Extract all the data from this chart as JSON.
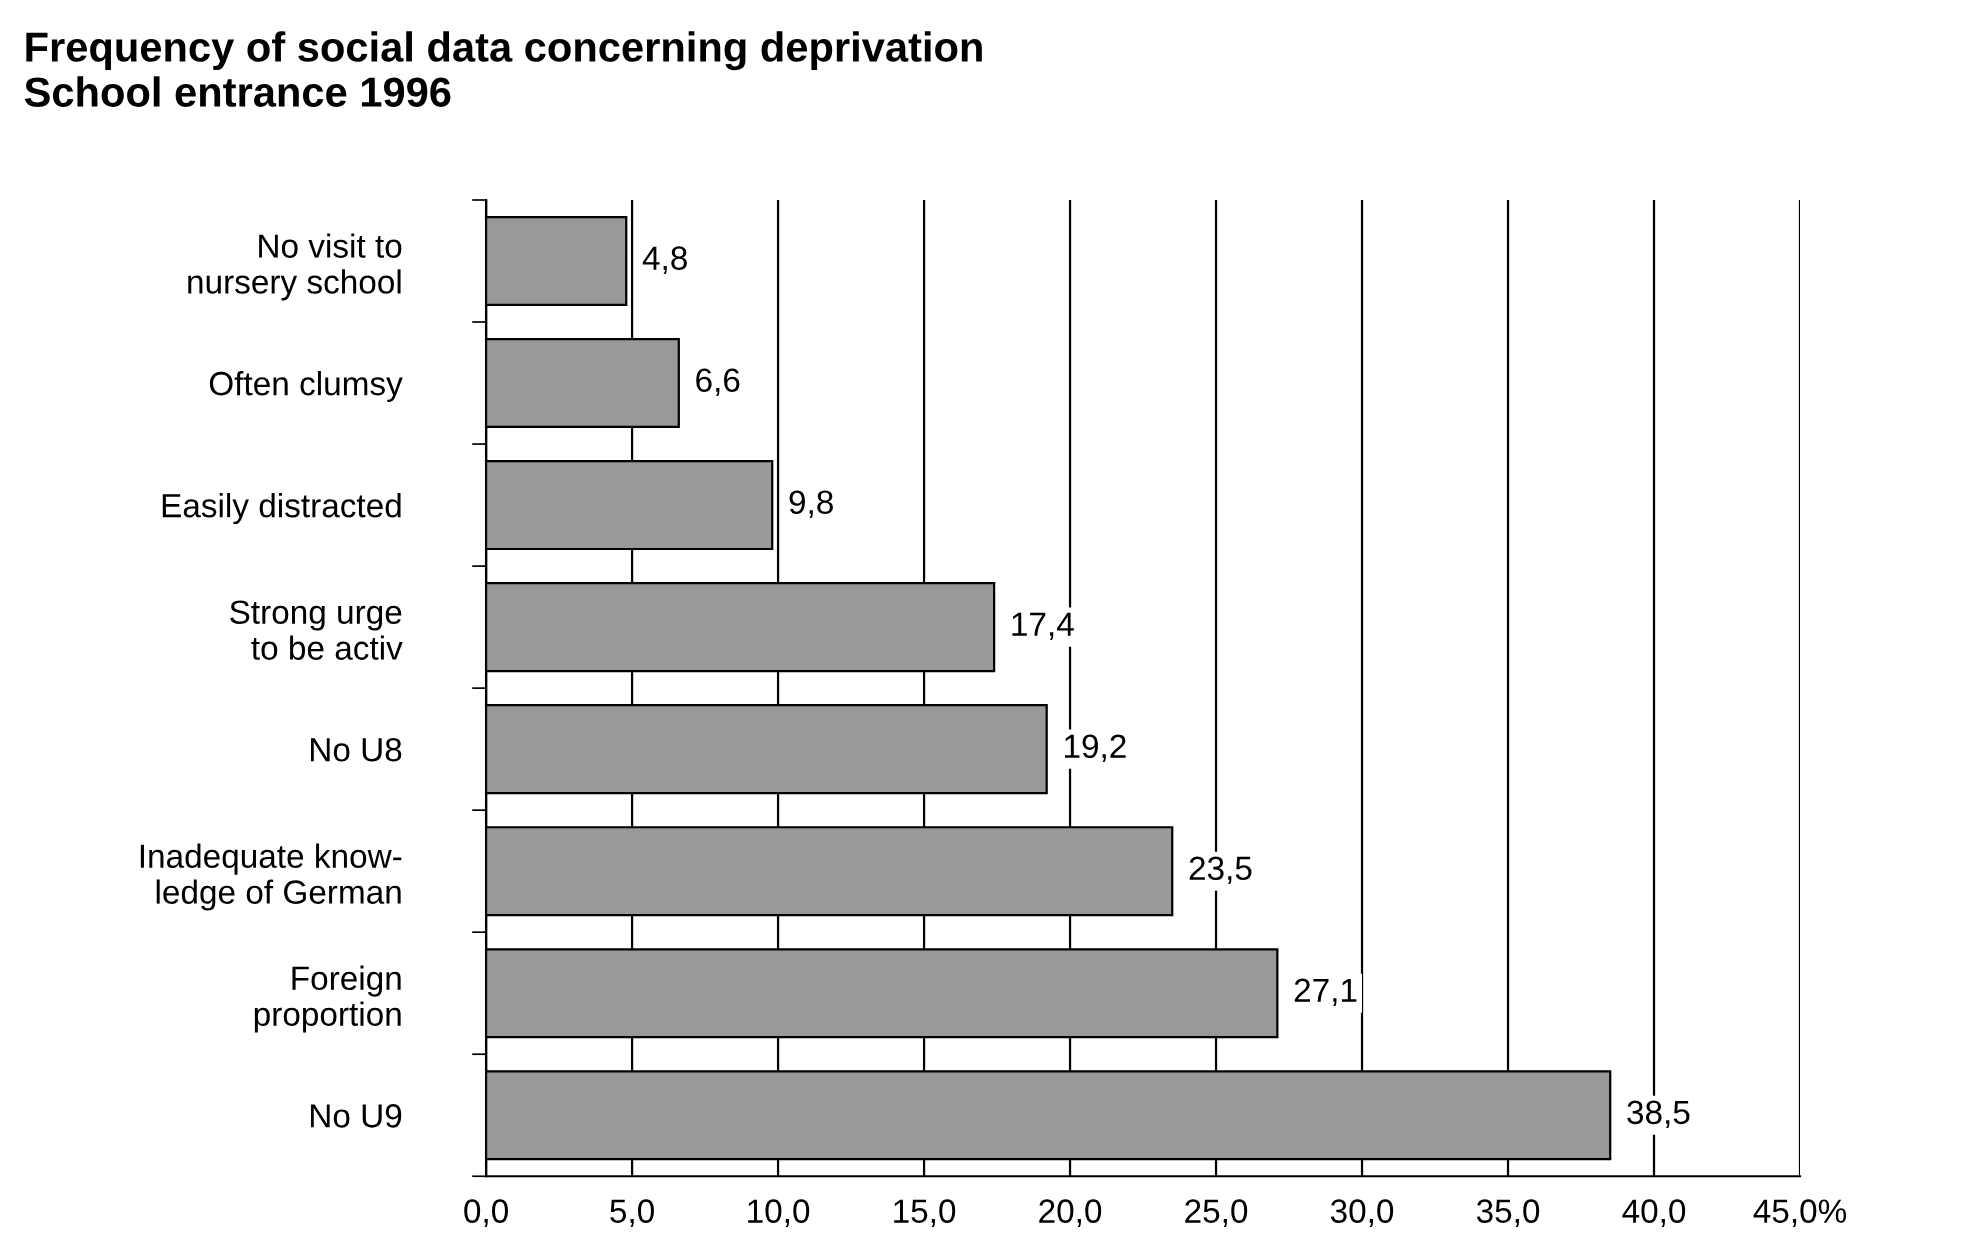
{
  "chart_data": {
    "type": "bar",
    "orientation": "horizontal",
    "title": "Frequency of social data concerning deprivation\nSchool entrance 1996",
    "categories": [
      "No visit to\nnursery school",
      "Often clumsy",
      "Easily distracted",
      "Strong urge\nto be activ",
      "No U8",
      "Inadequate know-\nledge of German",
      "Foreign\nproportion",
      "No U9"
    ],
    "values": [
      4.8,
      6.6,
      9.8,
      17.4,
      19.2,
      23.5,
      27.1,
      38.5
    ],
    "value_labels": [
      "4,8",
      "6,6",
      "9,8",
      "17,4",
      "19,2",
      "23,5",
      "27,1",
      "38,5"
    ],
    "color": "#999999",
    "xlim": [
      0,
      45
    ],
    "xticks": [
      {
        "value": 0,
        "label": "0,0"
      },
      {
        "value": 5,
        "label": "5,0"
      },
      {
        "value": 10,
        "label": "10,0"
      },
      {
        "value": 15,
        "label": "15,0"
      },
      {
        "value": 20,
        "label": "20,0"
      },
      {
        "value": 25,
        "label": "25,0"
      },
      {
        "value": 30,
        "label": "30,0"
      },
      {
        "value": 35,
        "label": "35,0"
      },
      {
        "value": 40,
        "label": "40,0"
      },
      {
        "value": 45,
        "label": "45,0%"
      }
    ],
    "grid": "x",
    "legend": false
  }
}
